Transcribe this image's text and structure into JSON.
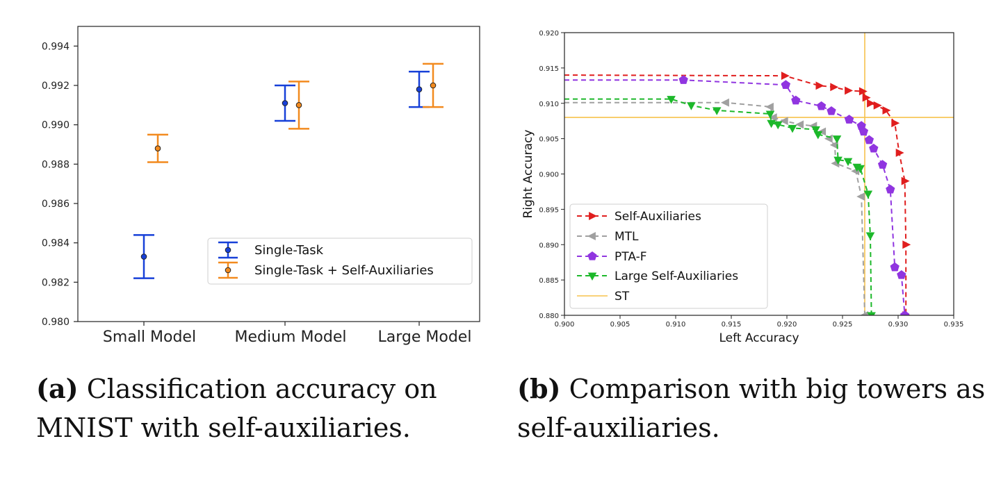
{
  "chart_data": [
    {
      "type": "errorbar",
      "categories": [
        "Small Model",
        "Medium Model",
        "Large Model"
      ],
      "ylim": [
        0.98,
        0.995
      ],
      "yticks": [
        "0.980",
        "0.982",
        "0.984",
        "0.986",
        "0.988",
        "0.990",
        "0.992",
        "0.994"
      ],
      "series": [
        {
          "name": "Single-Task",
          "color": "#1740d8",
          "mean": [
            0.9833,
            0.9911,
            0.9918
          ],
          "lower": [
            0.9822,
            0.9902,
            0.9909
          ],
          "upper": [
            0.9844,
            0.992,
            0.9927
          ]
        },
        {
          "name": "Single-Task + Self-Auxiliaries",
          "color": "#f28a1e",
          "mean": [
            0.9888,
            0.991,
            0.992
          ],
          "lower": [
            0.9881,
            0.9898,
            0.9909
          ],
          "upper": [
            0.9895,
            0.9922,
            0.9931
          ]
        }
      ],
      "legend_position": "lower-right",
      "grid": false
    },
    {
      "type": "line",
      "xlabel": "Left Accuracy",
      "ylabel": "Right Accuracy",
      "xlim": [
        0.9,
        0.935
      ],
      "ylim": [
        0.88,
        0.92
      ],
      "xticks": [
        "0.900",
        "0.905",
        "0.910",
        "0.915",
        "0.920",
        "0.925",
        "0.930",
        "0.935"
      ],
      "yticks": [
        "0.880",
        "0.885",
        "0.890",
        "0.895",
        "0.900",
        "0.905",
        "0.910",
        "0.915",
        "0.920"
      ],
      "series": [
        {
          "name": "Self-Auxiliaries",
          "color": "#e01e1e",
          "marker": "triangle-right",
          "points": [
            [
              0.9,
              0.914
            ],
            [
              0.9198,
              0.9139
            ],
            [
              0.9229,
              0.9125
            ],
            [
              0.9242,
              0.9123
            ],
            [
              0.9255,
              0.9118
            ],
            [
              0.9268,
              0.9117
            ],
            [
              0.9271,
              0.9108
            ],
            [
              0.9275,
              0.91
            ],
            [
              0.9281,
              0.9097
            ],
            [
              0.9289,
              0.909
            ],
            [
              0.9297,
              0.9072
            ],
            [
              0.9301,
              0.903
            ],
            [
              0.9306,
              0.899
            ],
            [
              0.9307,
              0.89
            ],
            [
              0.9307,
              0.88
            ]
          ]
        },
        {
          "name": "MTL",
          "color": "#a0a0a0",
          "marker": "triangle-left",
          "points": [
            [
              0.9,
              0.9101
            ],
            [
              0.9145,
              0.9101
            ],
            [
              0.9185,
              0.9095
            ],
            [
              0.9188,
              0.908
            ],
            [
              0.9198,
              0.9075
            ],
            [
              0.9212,
              0.907
            ],
            [
              0.9224,
              0.9068
            ],
            [
              0.9232,
              0.906
            ],
            [
              0.9238,
              0.905
            ],
            [
              0.9243,
              0.9041
            ],
            [
              0.9244,
              0.9015
            ],
            [
              0.9262,
              0.9004
            ],
            [
              0.9267,
              0.8968
            ],
            [
              0.927,
              0.88
            ]
          ]
        },
        {
          "name": "PTA-F",
          "color": "#9035e0",
          "marker": "pentagon",
          "points": [
            [
              0.9,
              0.9133
            ],
            [
              0.9107,
              0.9133
            ],
            [
              0.9199,
              0.9126
            ],
            [
              0.9208,
              0.9104
            ],
            [
              0.9231,
              0.9096
            ],
            [
              0.924,
              0.9089
            ],
            [
              0.9256,
              0.9077
            ],
            [
              0.9267,
              0.9068
            ],
            [
              0.9269,
              0.906
            ],
            [
              0.9274,
              0.9048
            ],
            [
              0.9278,
              0.9036
            ],
            [
              0.9286,
              0.9013
            ],
            [
              0.9293,
              0.8978
            ],
            [
              0.9297,
              0.8868
            ],
            [
              0.9303,
              0.8857
            ],
            [
              0.9306,
              0.88
            ]
          ]
        },
        {
          "name": "Large Self-Auxiliaries",
          "color": "#1cb82a",
          "marker": "triangle-down",
          "points": [
            [
              0.9,
              0.9106
            ],
            [
              0.9096,
              0.9106
            ],
            [
              0.9114,
              0.9097
            ],
            [
              0.9137,
              0.909
            ],
            [
              0.9185,
              0.9085
            ],
            [
              0.9186,
              0.9072
            ],
            [
              0.9192,
              0.907
            ],
            [
              0.9205,
              0.9065
            ],
            [
              0.9226,
              0.9063
            ],
            [
              0.9228,
              0.9056
            ],
            [
              0.9245,
              0.905
            ],
            [
              0.9246,
              0.902
            ],
            [
              0.9255,
              0.9018
            ],
            [
              0.9263,
              0.901
            ],
            [
              0.9266,
              0.9008
            ],
            [
              0.9273,
              0.8972
            ],
            [
              0.9275,
              0.8913
            ],
            [
              0.9276,
              0.88
            ]
          ]
        }
      ],
      "reference": {
        "name": "ST",
        "color": "#f7c24c",
        "x": 0.927,
        "y": 0.908
      },
      "legend_position": "lower-left",
      "grid": false
    }
  ],
  "captions": {
    "a_tag": "(a)",
    "a_text": "Classification accuracy on MNIST with self-auxiliaries.",
    "b_tag": "(b)",
    "b_text": "Comparison with big towers as self-auxiliaries."
  }
}
